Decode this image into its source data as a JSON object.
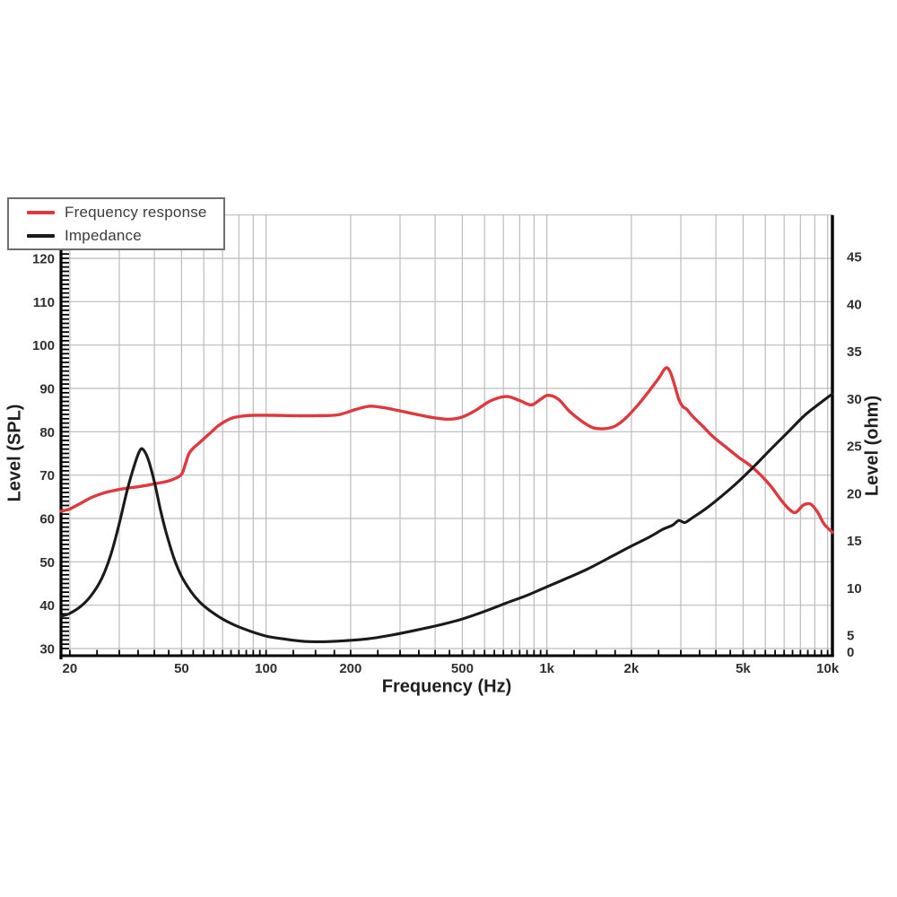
{
  "legend": {
    "items": [
      {
        "label": "Frequency response",
        "color": "#dd3a3f"
      },
      {
        "label": "Impedance",
        "color": "#1a1a1a"
      }
    ]
  },
  "chart_data": {
    "type": "line",
    "title": "",
    "xlabel": "Frequency (Hz)",
    "x_scale": "log",
    "x_range": [
      18.6,
      10400
    ],
    "x_tick_labels": [
      "20",
      "50",
      "100",
      "200",
      "500",
      "1k",
      "2k",
      "5k",
      "10k"
    ],
    "x_tick_values": [
      20,
      50,
      100,
      200,
      500,
      1000,
      2000,
      5000,
      10000
    ],
    "y_left": {
      "label": "Level (SPL)",
      "ticks": [
        120,
        110,
        100,
        90,
        80,
        70,
        60,
        50,
        40,
        30
      ],
      "gridline_step": 10,
      "minor_tick_step": 1,
      "range_at_plot_edges": [
        28.3,
        130
      ]
    },
    "y_right": {
      "label": "Level (ohm)",
      "ticks": [
        45,
        40,
        35,
        30,
        25,
        20,
        15,
        10,
        5,
        0
      ],
      "range": [
        0,
        45
      ]
    },
    "grid": true,
    "grid_color": "#bcbcbc",
    "axis_color": "#000000",
    "tick_label_color": "#2f2f2f",
    "legend_position": "top-left",
    "series": [
      {
        "name": "Frequency response",
        "axis": "left",
        "unit": "dB SPL",
        "color": "#dd3a3f",
        "points": [
          [
            18.6,
            61.7
          ],
          [
            20,
            62.2
          ],
          [
            22,
            63.6
          ],
          [
            24,
            64.9
          ],
          [
            26.5,
            65.9
          ],
          [
            29,
            66.5
          ],
          [
            32,
            67.0
          ],
          [
            35,
            67.3
          ],
          [
            38,
            67.7
          ],
          [
            41,
            68.1
          ],
          [
            44,
            68.5
          ],
          [
            47,
            69.1
          ],
          [
            50,
            70.2
          ],
          [
            51.5,
            72.4
          ],
          [
            53,
            74.8
          ],
          [
            55,
            76.2
          ],
          [
            58,
            77.5
          ],
          [
            61,
            78.8
          ],
          [
            64,
            80.0
          ],
          [
            67,
            81.2
          ],
          [
            71,
            82.3
          ],
          [
            76,
            83.2
          ],
          [
            82,
            83.6
          ],
          [
            90,
            83.8
          ],
          [
            105,
            83.8
          ],
          [
            125,
            83.7
          ],
          [
            150,
            83.7
          ],
          [
            180,
            83.9
          ],
          [
            210,
            85.2
          ],
          [
            235,
            85.9
          ],
          [
            265,
            85.5
          ],
          [
            300,
            84.8
          ],
          [
            350,
            83.9
          ],
          [
            400,
            83.2
          ],
          [
            450,
            82.9
          ],
          [
            500,
            83.4
          ],
          [
            560,
            85.0
          ],
          [
            620,
            86.9
          ],
          [
            680,
            87.9
          ],
          [
            730,
            88.1
          ],
          [
            800,
            87.2
          ],
          [
            880,
            86.2
          ],
          [
            950,
            87.5
          ],
          [
            1010,
            88.4
          ],
          [
            1100,
            87.5
          ],
          [
            1200,
            84.8
          ],
          [
            1320,
            82.6
          ],
          [
            1450,
            81.0
          ],
          [
            1600,
            80.7
          ],
          [
            1750,
            81.3
          ],
          [
            1900,
            83.0
          ],
          [
            2100,
            86.0
          ],
          [
            2300,
            89.2
          ],
          [
            2500,
            92.3
          ],
          [
            2650,
            94.7
          ],
          [
            2750,
            93.8
          ],
          [
            2850,
            90.8
          ],
          [
            2950,
            87.5
          ],
          [
            3050,
            85.8
          ],
          [
            3150,
            85.2
          ],
          [
            3300,
            83.6
          ],
          [
            3600,
            81.2
          ],
          [
            3900,
            78.9
          ],
          [
            4300,
            76.7
          ],
          [
            4800,
            74.2
          ],
          [
            5300,
            72.2
          ],
          [
            5800,
            69.9
          ],
          [
            6300,
            67.3
          ],
          [
            6800,
            64.4
          ],
          [
            7300,
            62.1
          ],
          [
            7700,
            61.4
          ],
          [
            8200,
            63.1
          ],
          [
            8700,
            63.3
          ],
          [
            9200,
            61.5
          ],
          [
            9700,
            58.8
          ],
          [
            10400,
            56.8
          ]
        ]
      },
      {
        "name": "Impedance",
        "axis": "right",
        "unit": "ohm",
        "color": "#1a1a1a",
        "points": [
          [
            18.6,
            7.0
          ],
          [
            20,
            7.3
          ],
          [
            22,
            8.1
          ],
          [
            24,
            9.3
          ],
          [
            26,
            11.0
          ],
          [
            28,
            13.5
          ],
          [
            30,
            16.8
          ],
          [
            32,
            20.3
          ],
          [
            34,
            23.0
          ],
          [
            35.5,
            24.5
          ],
          [
            36.5,
            24.6
          ],
          [
            38,
            23.6
          ],
          [
            40,
            21.2
          ],
          [
            42,
            18.3
          ],
          [
            44,
            15.9
          ],
          [
            47,
            13.1
          ],
          [
            50,
            11.2
          ],
          [
            54,
            9.6
          ],
          [
            58,
            8.5
          ],
          [
            63,
            7.6
          ],
          [
            70,
            6.7
          ],
          [
            78,
            6.0
          ],
          [
            88,
            5.4
          ],
          [
            100,
            4.9
          ],
          [
            115,
            4.6
          ],
          [
            135,
            4.35
          ],
          [
            160,
            4.3
          ],
          [
            190,
            4.4
          ],
          [
            230,
            4.6
          ],
          [
            280,
            5.0
          ],
          [
            340,
            5.5
          ],
          [
            420,
            6.1
          ],
          [
            500,
            6.7
          ],
          [
            600,
            7.5
          ],
          [
            720,
            8.4
          ],
          [
            850,
            9.2
          ],
          [
            1000,
            10.1
          ],
          [
            1200,
            11.1
          ],
          [
            1400,
            12.0
          ],
          [
            1700,
            13.3
          ],
          [
            2000,
            14.4
          ],
          [
            2300,
            15.3
          ],
          [
            2600,
            16.2
          ],
          [
            2800,
            16.6
          ],
          [
            2950,
            17.1
          ],
          [
            3100,
            16.9
          ],
          [
            3300,
            17.4
          ],
          [
            3700,
            18.4
          ],
          [
            4200,
            19.7
          ],
          [
            4800,
            21.2
          ],
          [
            5500,
            22.9
          ],
          [
            6300,
            24.7
          ],
          [
            7200,
            26.4
          ],
          [
            8200,
            28.1
          ],
          [
            9200,
            29.3
          ],
          [
            10400,
            30.5
          ]
        ]
      }
    ]
  }
}
